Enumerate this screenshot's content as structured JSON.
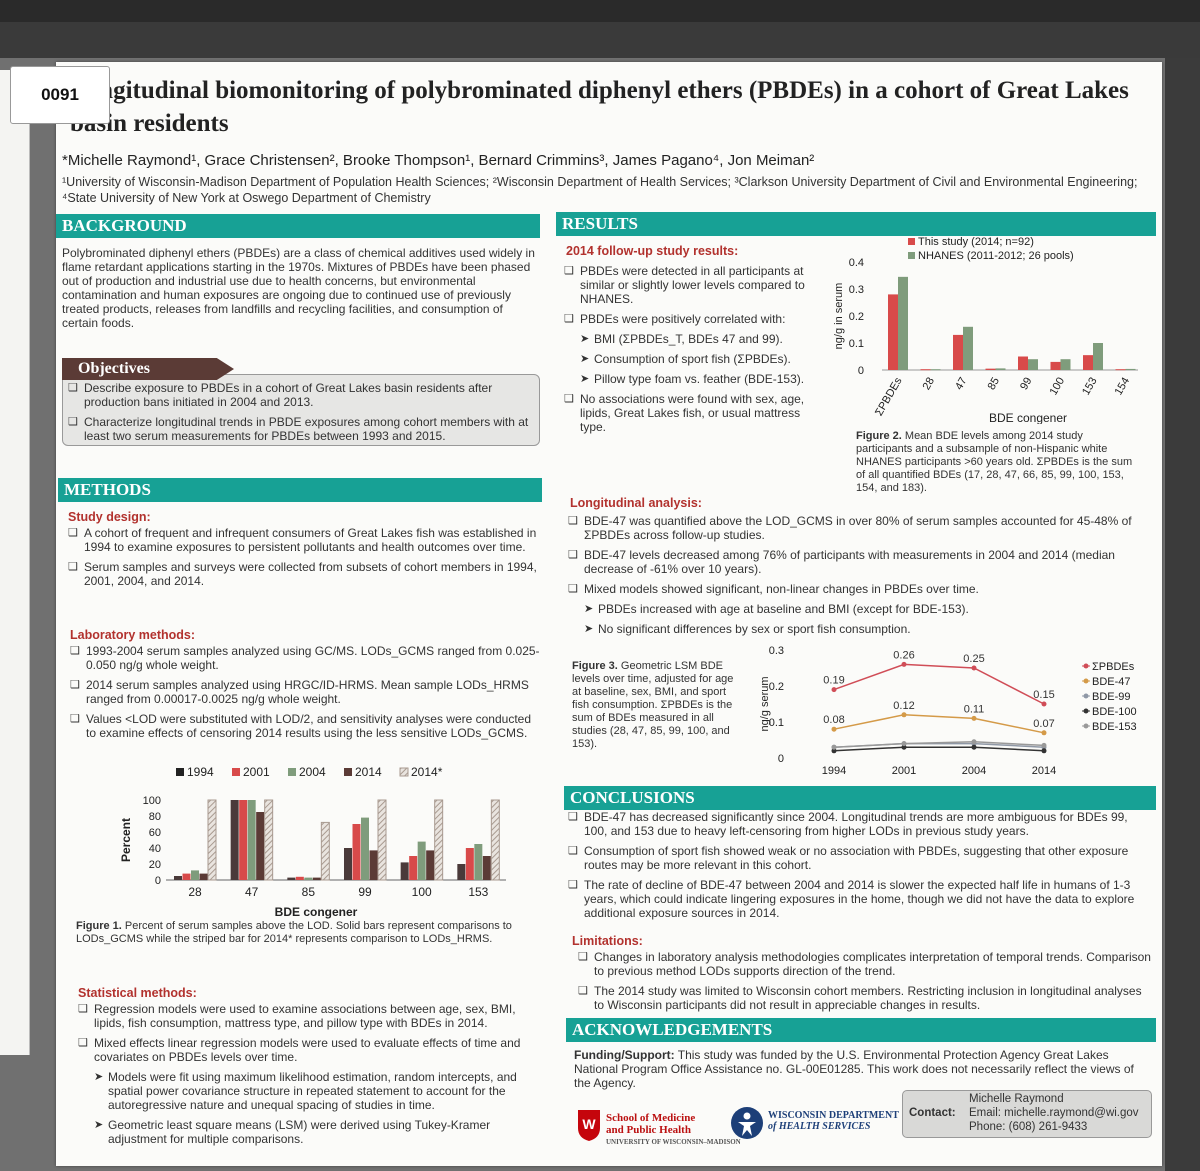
{
  "tag_number": "0091",
  "title": "Longitudinal biomonitoring of polybrominated diphenyl ethers (PBDEs) in a cohort of Great Lakes basin residents",
  "authors": "*Michelle Raymond¹, Grace Christensen², Brooke Thompson¹, Bernard Crimmins³, James Pagano⁴, Jon Meiman²",
  "affiliations": "¹University of Wisconsin-Madison Department of Population Health Sciences; ²Wisconsin Department of Health Services; ³Clarkson University Department of Civil and Environmental Engineering; ⁴State University of New York at Oswego Department of Chemistry",
  "background": {
    "header": "BACKGROUND",
    "text": "Polybrominated diphenyl ethers (PBDEs) are a class of chemical additives used widely in flame retardant applications starting in the 1970s. Mixtures of PBDEs have been phased out of production and industrial use due to health concerns, but environmental contamination and human exposures are ongoing due to continued use of previously treated products, releases from landfills and recycling facilities, and consumption of certain foods."
  },
  "objectives": {
    "header": "Objectives",
    "items": [
      "Describe exposure to PBDEs in a cohort of Great Lakes basin residents after production bans initiated in 2004 and 2013.",
      "Characterize longitudinal trends in PBDE exposures among cohort members with at least two serum measurements for PBDEs between 1993 and 2015."
    ]
  },
  "methods": {
    "header": "METHODS",
    "study_design_title": "Study design:",
    "study_design": [
      "A cohort of frequent and infrequent consumers of Great Lakes fish was established in 1994 to examine exposures to persistent pollutants and health outcomes over time.",
      "Serum samples and surveys were collected from subsets of cohort members in 1994, 2001, 2004, and 2014."
    ],
    "lab_title": "Laboratory methods:",
    "lab": [
      "1993-2004 serum samples analyzed using GC/MS. LODs_GCMS ranged from 0.025-0.050 ng/g whole weight.",
      "2014 serum samples analyzed using HRGC/ID-HRMS. Mean sample LODs_HRMS ranged from 0.00017-0.0025 ng/g whole weight.",
      "Values <LOD were substituted with LOD/2, and sensitivity analyses were conducted to examine effects of censoring 2014 results using the less sensitive LODs_GCMS."
    ],
    "fig1_caption_bold": "Figure 1.",
    "fig1_caption": "Percent of serum samples above the LOD. Solid bars represent comparisons to LODs_GCMS while the striped bar for 2014* represents comparison to LODs_HRMS.",
    "stat_title": "Statistical methods:",
    "stat": [
      "Regression models were used to examine associations between age, sex, BMI, lipids, fish consumption, mattress type, and pillow type with BDEs in 2014.",
      "Mixed effects linear regression models were used to evaluate effects of time and covariates on PBDEs levels over time."
    ],
    "stat_sub": [
      "Models were fit using maximum likelihood estimation, random intercepts, and spatial power covariance structure in repeated statement to account for the autoregressive nature and unequal spacing of studies in time.",
      "Geometric least square means (LSM) were derived using Tukey-Kramer adjustment for multiple comparisons."
    ]
  },
  "results": {
    "header": "RESULTS",
    "followup_title": "2014 follow-up study results:",
    "followup": [
      "PBDEs were detected in all participants at similar or slightly lower levels compared to NHANES.",
      "PBDEs were positively correlated with:"
    ],
    "followup_sub": [
      "BMI (ΣPBDEs_T, BDEs 47 and 99).",
      "Consumption of sport fish (ΣPBDEs).",
      "Pillow type foam vs. feather (BDE-153)."
    ],
    "followup_last": "No associations were found with sex, age, lipids, Great Lakes fish, or usual mattress type.",
    "fig2_caption_bold": "Figure 2.",
    "fig2_caption": "Mean BDE levels among 2014 study participants and a subsample of non-Hispanic white NHANES participants >60 years old. ΣPBDEs is the sum of all quantified BDEs (17, 28, 47, 66, 85, 99, 100, 153, 154, and 183).",
    "long_title": "Longitudinal analysis:",
    "long": [
      "BDE-47 was quantified above the LOD_GCMS in over 80% of serum samples accounted for 45-48% of ΣPBDEs across follow-up studies.",
      "BDE-47 levels decreased among 76% of participants with measurements in 2004 and 2014 (median decrease of -61% over 10 years).",
      "Mixed models showed significant, non-linear changes in PBDEs over time."
    ],
    "long_sub": [
      "PBDEs increased with age at baseline and BMI (except for BDE-153).",
      "No significant differences by sex or sport fish consumption."
    ],
    "fig3_caption_bold": "Figure 3.",
    "fig3_caption": "Geometric LSM BDE levels over time, adjusted for age at baseline, sex, BMI, and sport fish consumption. ΣPBDEs is the sum of BDEs measured in all studies (28, 47, 85, 99, 100, and 153)."
  },
  "conclusions": {
    "header": "CONCLUSIONS",
    "items": [
      "BDE-47 has decreased significantly since 2004. Longitudinal trends are more ambiguous for BDEs 99, 100, and 153 due to heavy left-censoring from higher LODs in previous study years.",
      "Consumption of sport fish showed weak or no association with PBDEs, suggesting that other exposure routes may be more relevant in this cohort.",
      "The rate of decline of BDE-47 between 2004 and 2014 is slower the expected half life in humans of 1-3 years, which could indicate lingering exposures in the home, though we did not have the data to explore additional exposure sources in 2014."
    ],
    "limitations_title": "Limitations:",
    "limitations": [
      "Changes in laboratory analysis methodologies complicates interpretation of temporal trends. Comparison to previous method LODs supports direction of the trend.",
      "The 2014 study was limited to Wisconsin cohort members. Restricting inclusion in longitudinal analyses to Wisconsin participants did not result in appreciable changes in results."
    ]
  },
  "acknowledgements": {
    "header": "ACKNOWLEDGEMENTS",
    "funding_label": "Funding/Support:",
    "funding": "This study was funded by the U.S. Environmental Protection Agency Great Lakes National Program Office Assistance no. GL-00E01285. This work does not necessarily reflect the views of the Agency."
  },
  "logos": {
    "uw_line1": "School of Medicine",
    "uw_line2": "and Public Health",
    "uw_line3": "UNIVERSITY OF WISCONSIN–MADISON",
    "dhs_line1": "WISCONSIN DEPARTMENT",
    "dhs_line2": "of HEALTH SERVICES"
  },
  "contact": {
    "label": "Contact:",
    "name": "Michelle Raymond",
    "email": "Email: michelle.raymond@wi.gov",
    "phone": "Phone: (608) 261-9433"
  },
  "colors": {
    "teal": "#17a195",
    "red": "#d84a4a",
    "green": "#7f9c7c",
    "dark": "#4a3a3a",
    "orange": "#d49a48",
    "gray": "#8f8f8f"
  },
  "chart_data": [
    {
      "type": "bar",
      "categories": [
        "28",
        "47",
        "85",
        "99",
        "100",
        "153"
      ],
      "series": [
        {
          "name": "1994",
          "values": [
            5,
            100,
            3,
            40,
            22,
            20
          ]
        },
        {
          "name": "2001",
          "values": [
            8,
            100,
            4,
            70,
            30,
            40
          ]
        },
        {
          "name": "2004",
          "values": [
            12,
            100,
            3,
            78,
            48,
            45
          ]
        },
        {
          "name": "2014",
          "values": [
            8,
            85,
            3,
            37,
            37,
            30
          ]
        },
        {
          "name": "2014*",
          "values": [
            100,
            100,
            72,
            100,
            100,
            100
          ]
        }
      ],
      "xlabel": "BDE congener",
      "ylabel": "Percent",
      "ylim": [
        0,
        100
      ],
      "yticks": [
        "0",
        "20",
        "40",
        "60",
        "80",
        "100"
      ],
      "legend": "top"
    },
    {
      "type": "bar",
      "categories": [
        "ΣPBDEs",
        "28",
        "47",
        "85",
        "99",
        "100",
        "153",
        "154"
      ],
      "series": [
        {
          "name": "This study (2014; n=92)",
          "values": [
            0.28,
            0.003,
            0.13,
            0.005,
            0.05,
            0.03,
            0.055,
            0.003
          ]
        },
        {
          "name": "NHANES (2011-2012; 26 pools)",
          "values": [
            0.345,
            0.003,
            0.16,
            0.006,
            0.04,
            0.04,
            0.1,
            0.004
          ]
        }
      ],
      "xlabel": "BDE congener",
      "ylabel": "ng/g in serum",
      "ylim": [
        0,
        0.4
      ],
      "yticks": [
        "0",
        "0.1",
        "0.2",
        "0.3",
        "0.4"
      ],
      "legend": "top"
    },
    {
      "type": "line",
      "x": [
        "1994",
        "2001",
        "2004",
        "2014"
      ],
      "series": [
        {
          "name": "ΣPBDEs",
          "values": [
            0.19,
            0.26,
            0.25,
            0.15
          ],
          "labels": [
            "0.19",
            "0.26",
            "0.25",
            "0.15"
          ]
        },
        {
          "name": "BDE-47",
          "values": [
            0.08,
            0.12,
            0.11,
            0.07
          ],
          "labels": [
            "0.08",
            "0.12",
            "0.11",
            "0.07"
          ]
        },
        {
          "name": "BDE-99",
          "values": [
            0.03,
            0.04,
            0.04,
            0.03
          ]
        },
        {
          "name": "BDE-100",
          "values": [
            0.02,
            0.03,
            0.03,
            0.02
          ]
        },
        {
          "name": "BDE-153",
          "values": [
            0.03,
            0.04,
            0.045,
            0.035
          ]
        }
      ],
      "ylabel": "ng/g serum",
      "ylim": [
        0,
        0.3
      ],
      "yticks": [
        "0",
        "0.1",
        "0.2",
        "0.3"
      ],
      "legend": "right"
    }
  ]
}
